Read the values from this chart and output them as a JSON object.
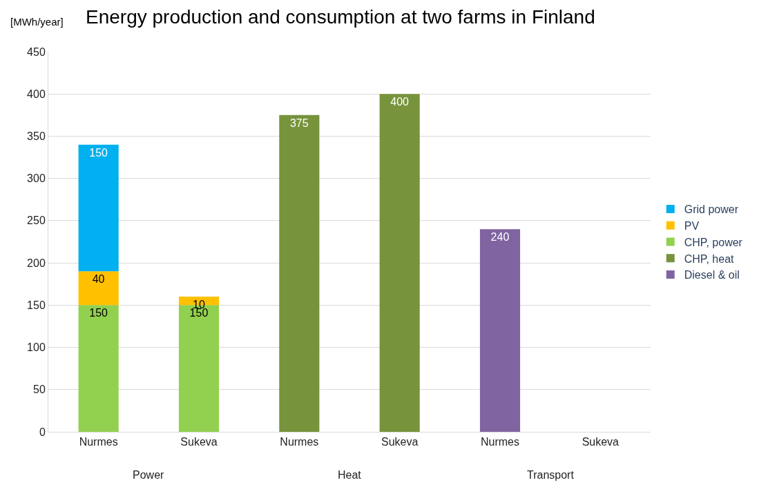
{
  "chart_data": {
    "type": "bar",
    "title": "Energy production and consumption at two farms in Finland",
    "ylabel": "[MWh/year]",
    "categories": [
      "Nurmes",
      "Sukeva",
      "Nurmes",
      "Sukeva",
      "Nurmes",
      "Sukeva"
    ],
    "annotations": [
      "Power",
      "Heat",
      "Transport"
    ],
    "stacked": true,
    "series": [
      {
        "name": "Diesel & oil",
        "color": "#8064a2",
        "values": [
          null,
          null,
          null,
          null,
          240,
          null
        ]
      },
      {
        "name": "CHP, heat",
        "color": "#77933c",
        "values": [
          null,
          null,
          375,
          400,
          null,
          null
        ]
      },
      {
        "name": "CHP, power",
        "color": "#92d050",
        "values": [
          150,
          150,
          null,
          null,
          null,
          null
        ]
      },
      {
        "name": "PV",
        "color": "#ffc000",
        "values": [
          40,
          10,
          null,
          null,
          null,
          null
        ]
      },
      {
        "name": "Grid power",
        "color": "#00b0f0",
        "values": [
          150,
          null,
          null,
          null,
          null,
          null
        ]
      }
    ],
    "ylim": [
      0,
      450
    ],
    "yticks": [
      0,
      50,
      100,
      150,
      200,
      250,
      300,
      350,
      400,
      450
    ],
    "grid": "y",
    "legend": "right",
    "data_labels": true
  }
}
